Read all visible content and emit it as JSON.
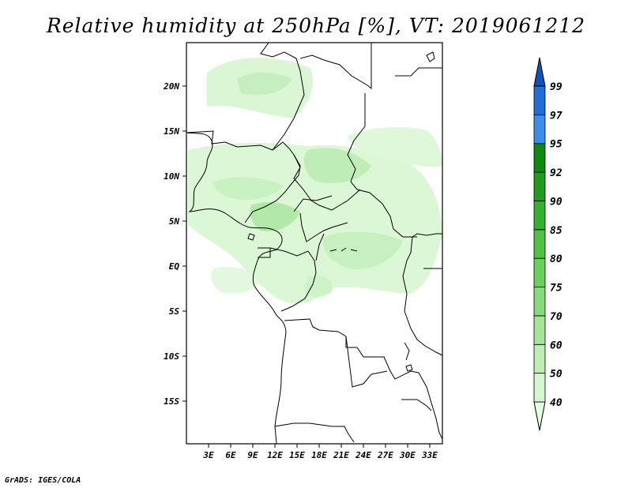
{
  "title": "Relative humidity at 250hPa [%], VT: 2019061212",
  "footer": "GrADS: IGES/COLA",
  "axes": {
    "x_ticks": [
      "3E",
      "6E",
      "9E",
      "12E",
      "15E",
      "18E",
      "21E",
      "24E",
      "27E",
      "30E",
      "33E"
    ],
    "y_ticks": [
      "20N",
      "15N",
      "10N",
      "5N",
      "EQ",
      "5S",
      "10S",
      "15S"
    ]
  },
  "colorbar": {
    "levels": [
      "40",
      "50",
      "60",
      "70",
      "75",
      "80",
      "85",
      "90",
      "92",
      "95",
      "97",
      "99"
    ],
    "colors": [
      "#e6fbe3",
      "#d4f5cf",
      "#bdeeb4",
      "#a4e59a",
      "#88db7d",
      "#69d05e",
      "#4fc246",
      "#36b12f",
      "#1f9c1d",
      "#0f8710",
      "#3d8ee6",
      "#1f6fd6",
      "#0d52b8"
    ]
  },
  "map": {
    "region": "West-Central Africa",
    "projection": "lat-lon",
    "lon_range": [
      "0E",
      "35E"
    ],
    "lat_range": [
      "20S",
      "25N"
    ]
  }
}
